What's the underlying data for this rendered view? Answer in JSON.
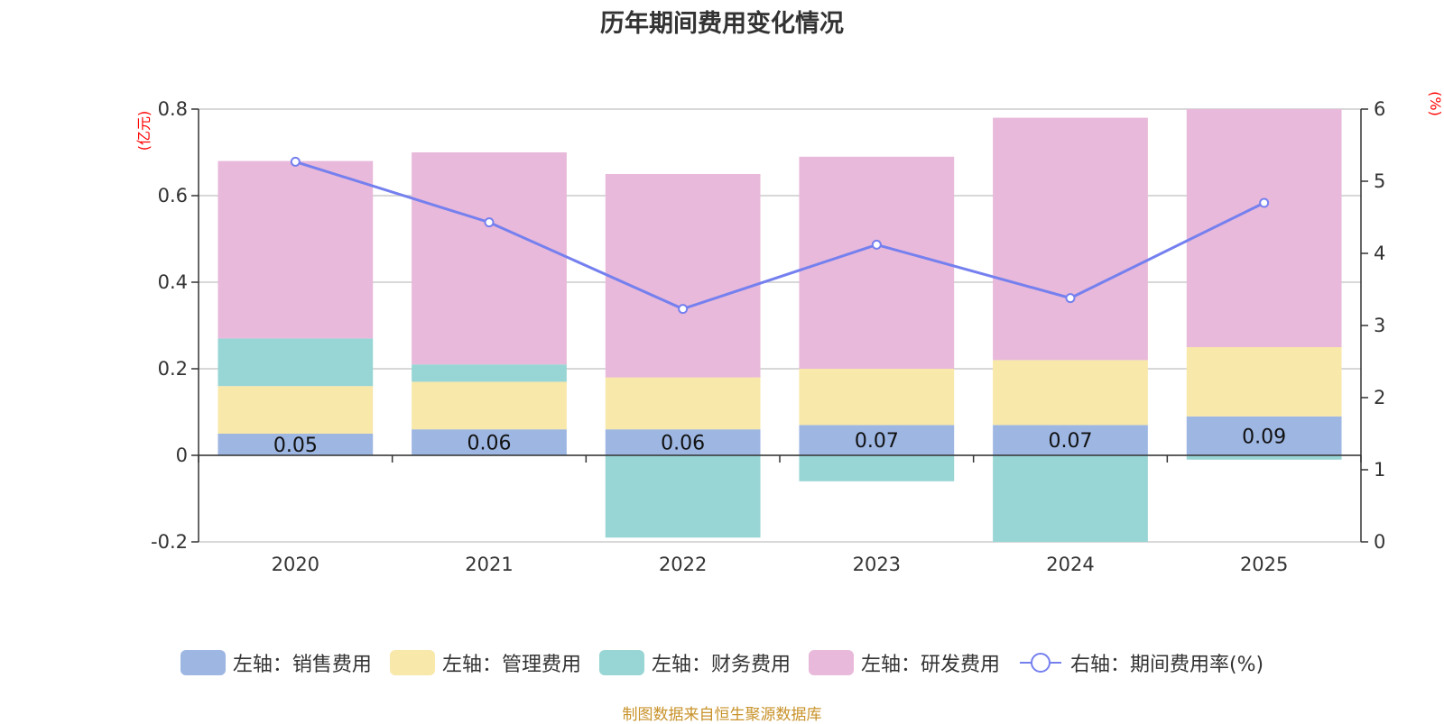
{
  "chart_data": {
    "type": "bar",
    "title": "历年期间费用变化情况",
    "categories": [
      "2020",
      "2021",
      "2022",
      "2023",
      "2024",
      "2025"
    ],
    "series": [
      {
        "name": "左轴：销售费用",
        "axis": "left",
        "color": "#9db6e2",
        "values": [
          0.05,
          0.06,
          0.06,
          0.07,
          0.07,
          0.09
        ],
        "show_labels": true
      },
      {
        "name": "左轴：管理费用",
        "axis": "left",
        "color": "#f8e8a9",
        "values": [
          0.11,
          0.11,
          0.12,
          0.13,
          0.15,
          0.16
        ]
      },
      {
        "name": "左轴：财务费用",
        "axis": "left",
        "color": "#98d5d5",
        "values": [
          0.11,
          0.04,
          -0.19,
          -0.06,
          -0.2,
          -0.01
        ]
      },
      {
        "name": "左轴：研发费用",
        "axis": "left",
        "color": "#e8b9da",
        "values": [
          0.41,
          0.49,
          0.47,
          0.49,
          0.56,
          0.55
        ]
      },
      {
        "name": "右轴：期间费用率(%)",
        "axis": "right",
        "type": "line",
        "color": "#7580ef",
        "values": [
          5.27,
          4.43,
          3.23,
          4.12,
          3.38,
          4.7
        ]
      }
    ],
    "left_axis": {
      "unit": "(亿元)",
      "ylim": [
        -0.2,
        0.8
      ],
      "ticks": [
        -0.2,
        0,
        0.2,
        0.4,
        0.6,
        0.8
      ],
      "tick_labels": [
        "-0.2",
        "0",
        "0.2",
        "0.4",
        "0.6",
        "0.8"
      ]
    },
    "right_axis": {
      "unit": "(%)",
      "ylim": [
        0,
        6
      ],
      "ticks": [
        0,
        1,
        2,
        3,
        4,
        5,
        6
      ],
      "tick_labels": [
        "0",
        "1",
        "2",
        "3",
        "4",
        "5",
        "6"
      ]
    },
    "legend_position": "bottom",
    "grid": true,
    "source": "制图数据来自恒生聚源数据库"
  }
}
